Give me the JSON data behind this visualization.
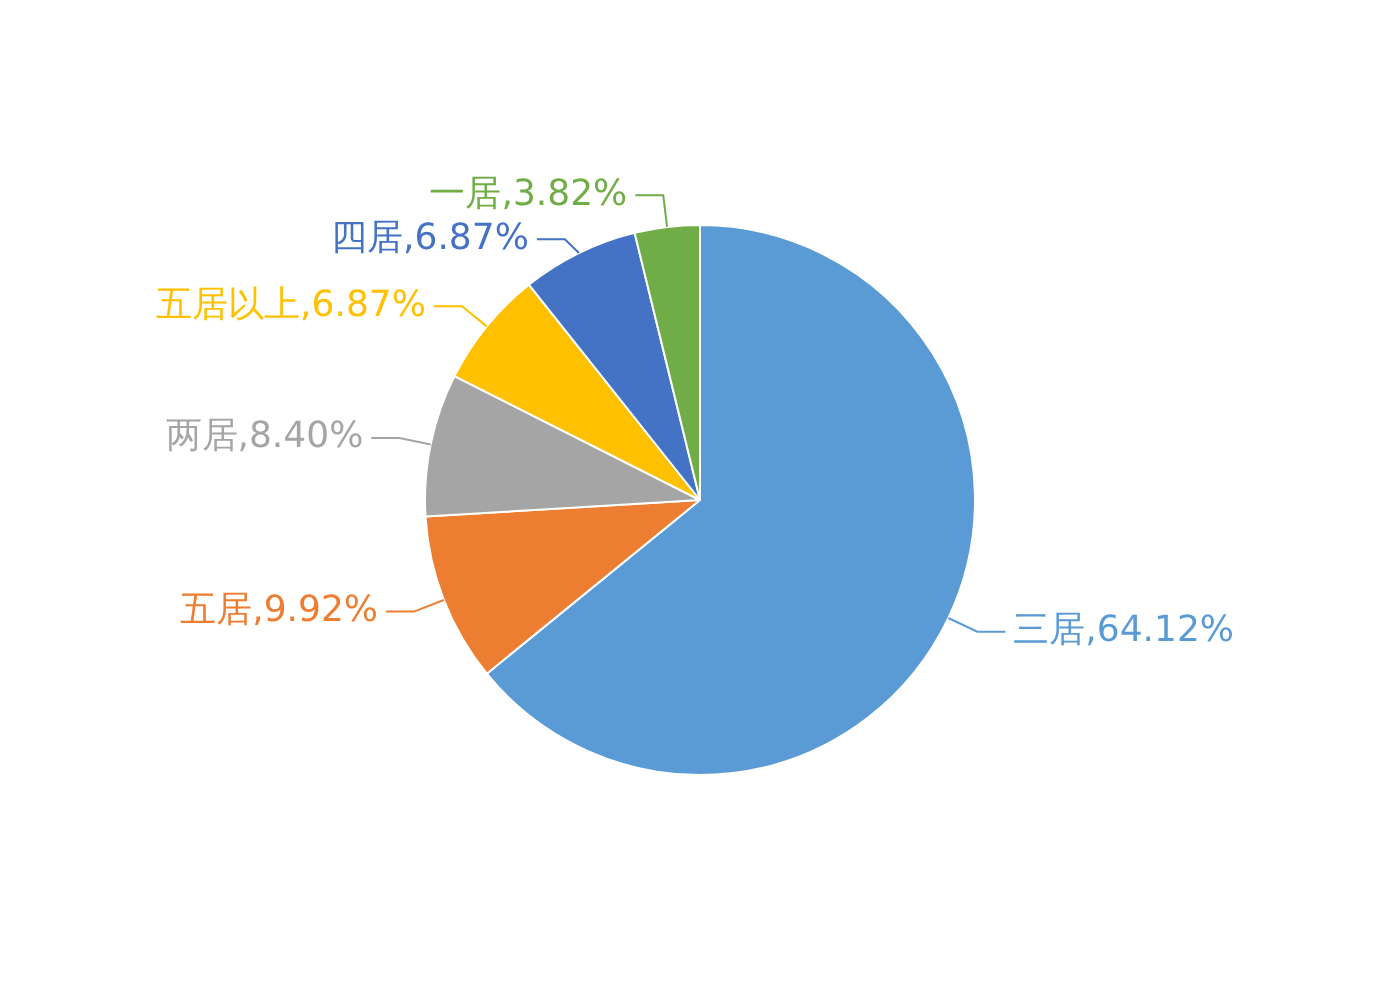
{
  "chart_data": {
    "type": "pie",
    "categories": [
      "三居",
      "五居",
      "两居",
      "五居以上",
      "四居",
      "一居"
    ],
    "values": [
      64.12,
      9.92,
      8.4,
      6.87,
      6.87,
      3.82
    ],
    "colors": [
      "#5b9bd5",
      "#ed7d31",
      "#a5a5a5",
      "#ffc000",
      "#4472c4",
      "#70ad47"
    ],
    "value_labels": [
      "64.12%",
      "9.92%",
      "8.40%",
      "6.87%",
      "6.87%",
      "3.82%"
    ],
    "legend": false
  }
}
